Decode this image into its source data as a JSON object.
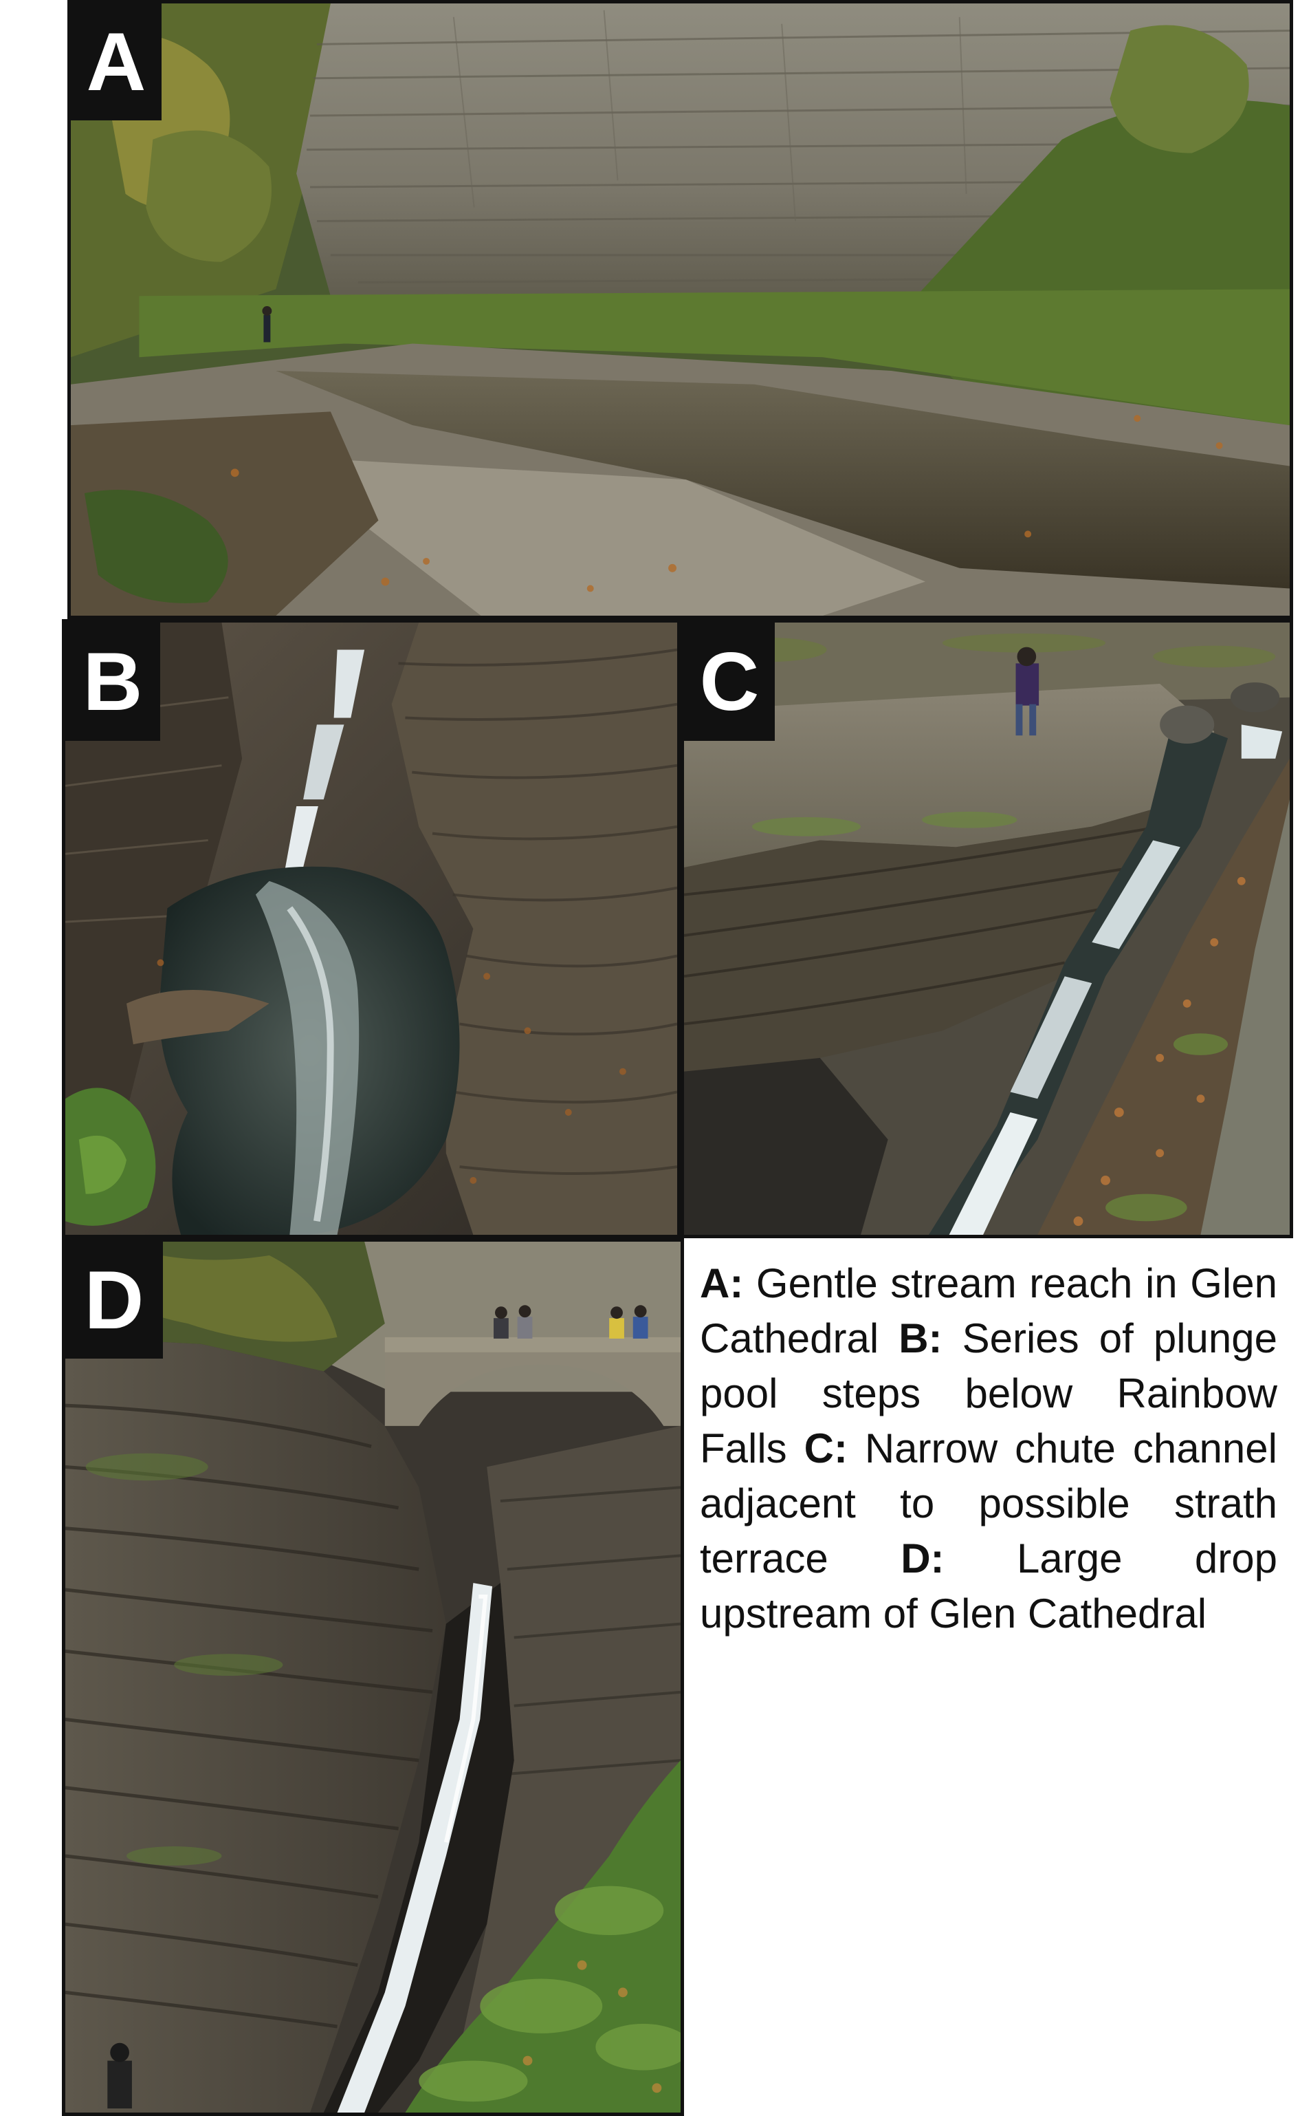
{
  "panels": {
    "a": {
      "label": "A"
    },
    "b": {
      "label": "B"
    },
    "c": {
      "label": "C"
    },
    "d": {
      "label": "D"
    }
  },
  "caption": {
    "a_key": "A:",
    "a_text": "Gentle stream reach in Glen Cathedral",
    "b_key": "B:",
    "b_text": "Series of plunge pool steps below Rainbow Falls",
    "c_key": "C:",
    "c_text": "Narrow chute channel adjacent to possible strath terrace",
    "d_key": "D:",
    "d_text": "Large drop upstream of Glen Cathedral"
  }
}
